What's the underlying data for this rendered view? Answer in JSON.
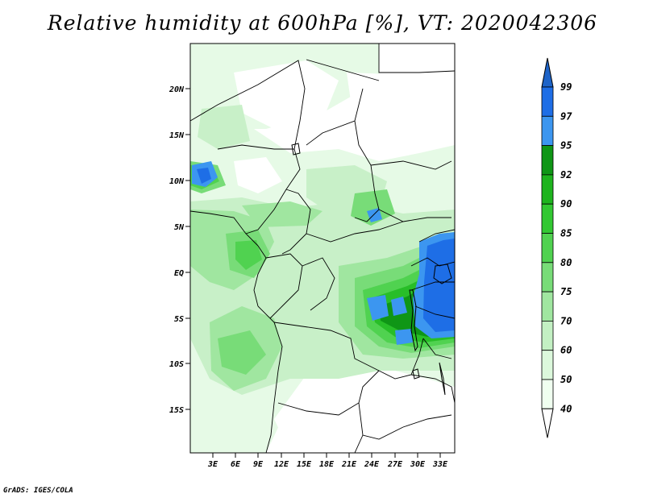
{
  "title": "Relative humidity at 600hPa [%], VT: 2020042306",
  "credit": "GrADS: IGES/COLA",
  "map": {
    "lon_ticks": [
      "3E",
      "6E",
      "9E",
      "12E",
      "15E",
      "18E",
      "21E",
      "24E",
      "27E",
      "30E",
      "33E"
    ],
    "lat_ticks": [
      "20N",
      "15N",
      "10N",
      "5N",
      "EQ",
      "5S",
      "10S",
      "15S"
    ]
  },
  "colorbar": {
    "levels": [
      "99",
      "97",
      "95",
      "92",
      "90",
      "85",
      "80",
      "75",
      "70",
      "60",
      "50",
      "40"
    ],
    "colors": {
      "c_top": "#1e64c8",
      "c_97": "#1e6ee6",
      "c_95": "#3c96f0",
      "c_92": "#0f9616",
      "c_90": "#1eb41e",
      "c_85": "#32c832",
      "c_80": "#50d250",
      "c_75": "#78dc78",
      "c_70": "#a0e6a0",
      "c_60": "#c3f0c3",
      "c_50": "#dcf8dc",
      "c_40": "#f0fff0"
    }
  }
}
